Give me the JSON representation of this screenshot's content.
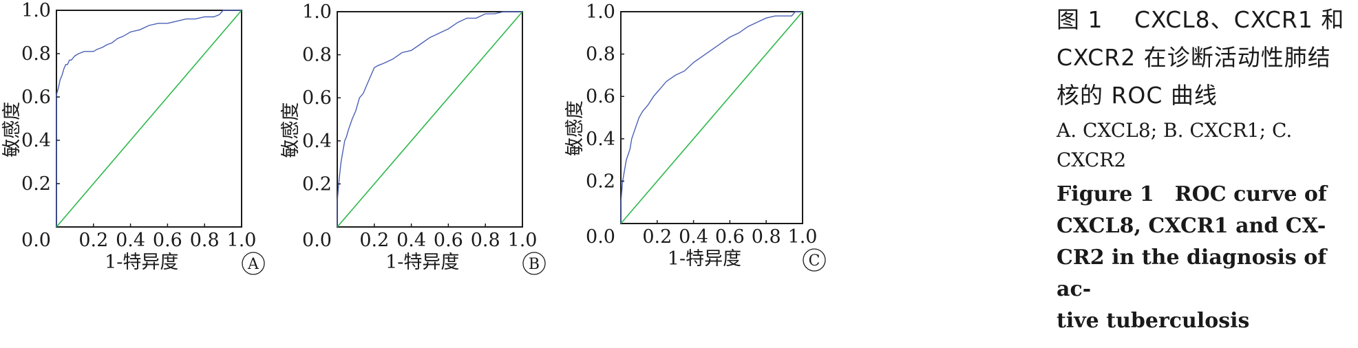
{
  "chart_data": [
    {
      "type": "line",
      "panel_label": "A",
      "xlabel": "1-特异度",
      "ylabel": "敏感度",
      "xlim": [
        0,
        1
      ],
      "ylim": [
        0,
        1
      ],
      "x_ticks": [
        "0.2",
        "0.4",
        "0.6",
        "0.8",
        "1.0"
      ],
      "y_ticks": [
        "0.2",
        "0.4",
        "0.6",
        "0.8",
        "1.0"
      ],
      "origin_label": "0.0",
      "series": [
        {
          "color": "#4a5fb5",
          "x": [
            0,
            0,
            0.01,
            0.02,
            0.03,
            0.04,
            0.05,
            0.06,
            0.07,
            0.08,
            0.1,
            0.12,
            0.15,
            0.18,
            0.2,
            0.22,
            0.25,
            0.27,
            0.3,
            0.33,
            0.36,
            0.4,
            0.45,
            0.5,
            0.55,
            0.6,
            0.65,
            0.7,
            0.75,
            0.8,
            0.85,
            0.88,
            0.9,
            1
          ],
          "y": [
            0,
            0.61,
            0.64,
            0.68,
            0.7,
            0.73,
            0.75,
            0.75,
            0.77,
            0.77,
            0.79,
            0.8,
            0.81,
            0.81,
            0.81,
            0.82,
            0.83,
            0.84,
            0.85,
            0.87,
            0.88,
            0.9,
            0.91,
            0.93,
            0.94,
            0.94,
            0.95,
            0.96,
            0.96,
            0.97,
            0.97,
            0.98,
            1,
            1
          ]
        },
        {
          "color": "#2bb84a",
          "x": [
            0,
            1
          ],
          "y": [
            0,
            1
          ]
        }
      ]
    },
    {
      "type": "line",
      "panel_label": "B",
      "xlabel": "1-特异度",
      "ylabel": "敏感度",
      "xlim": [
        0,
        1
      ],
      "ylim": [
        0,
        1
      ],
      "x_ticks": [
        "0.2",
        "0.4",
        "0.6",
        "0.8",
        "1.0"
      ],
      "y_ticks": [
        "0.2",
        "0.4",
        "0.6",
        "0.8",
        "1.0"
      ],
      "origin_label": "0.0",
      "series": [
        {
          "color": "#4a5fb5",
          "x": [
            0,
            0,
            0.01,
            0.02,
            0.03,
            0.04,
            0.05,
            0.06,
            0.08,
            0.1,
            0.12,
            0.14,
            0.16,
            0.18,
            0.2,
            0.22,
            0.25,
            0.3,
            0.35,
            0.4,
            0.45,
            0.5,
            0.55,
            0.6,
            0.65,
            0.7,
            0.75,
            0.8,
            0.85,
            0.9,
            1
          ],
          "y": [
            0,
            0.12,
            0.22,
            0.3,
            0.35,
            0.4,
            0.42,
            0.45,
            0.5,
            0.54,
            0.6,
            0.62,
            0.66,
            0.7,
            0.74,
            0.75,
            0.76,
            0.78,
            0.81,
            0.82,
            0.85,
            0.88,
            0.9,
            0.92,
            0.95,
            0.97,
            0.97,
            0.99,
            0.99,
            1,
            1
          ]
        },
        {
          "color": "#2bb84a",
          "x": [
            0,
            1
          ],
          "y": [
            0,
            1
          ]
        }
      ]
    },
    {
      "type": "line",
      "panel_label": "C",
      "xlabel": "1-特异度",
      "ylabel": "敏感度",
      "xlim": [
        0,
        1
      ],
      "ylim": [
        0,
        1
      ],
      "x_ticks": [
        "0.2",
        "0.4",
        "0.6",
        "0.8",
        "1.0"
      ],
      "y_ticks": [
        "0.2",
        "0.4",
        "0.6",
        "0.8",
        "1.0"
      ],
      "origin_label": "0.0",
      "series": [
        {
          "color": "#4a5fb5",
          "x": [
            0,
            0,
            0.01,
            0.02,
            0.03,
            0.05,
            0.06,
            0.08,
            0.1,
            0.12,
            0.15,
            0.18,
            0.2,
            0.22,
            0.25,
            0.3,
            0.35,
            0.4,
            0.45,
            0.5,
            0.55,
            0.6,
            0.65,
            0.7,
            0.75,
            0.8,
            0.85,
            0.9,
            0.94,
            0.96,
            1
          ],
          "y": [
            0,
            0.1,
            0.2,
            0.25,
            0.3,
            0.35,
            0.4,
            0.45,
            0.5,
            0.53,
            0.56,
            0.6,
            0.62,
            0.64,
            0.67,
            0.7,
            0.72,
            0.76,
            0.79,
            0.82,
            0.85,
            0.88,
            0.9,
            0.93,
            0.95,
            0.97,
            0.98,
            0.98,
            0.98,
            1,
            1
          ]
        },
        {
          "color": "#2bb84a",
          "x": [
            0,
            1
          ],
          "y": [
            0,
            1
          ]
        }
      ]
    }
  ],
  "caption": {
    "zh_lines": [
      "图 1　 CXCL8、CXCR1 和",
      "CXCR2 在诊断活动性肺结",
      "核的 ROC 曲线"
    ],
    "sub_lines": [
      "A. CXCL8; B. CXCR1; C.",
      "CXCR2"
    ],
    "en_lines": [
      "Figure 1　ROC curve of",
      "CXCL8, CXCR1 and CX-",
      "CR2 in the diagnosis of ac-",
      "tive tuberculosis"
    ]
  }
}
